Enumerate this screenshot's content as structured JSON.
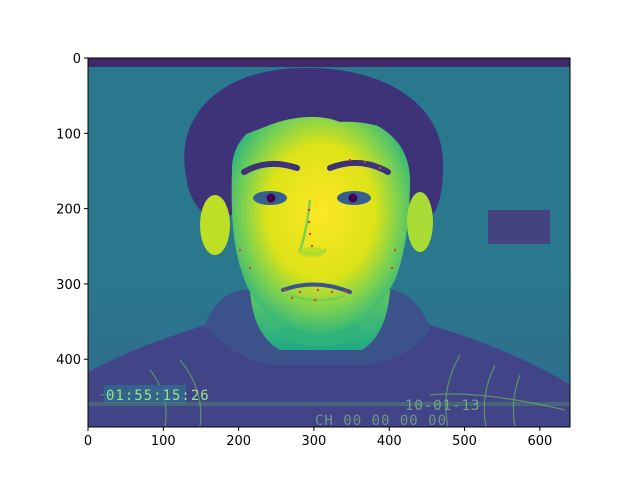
{
  "image": {
    "description_colormap": "viridis",
    "source_pixels": {
      "width": 640,
      "height": 490
    }
  },
  "axes": {
    "x_ticks": [
      0,
      100,
      200,
      300,
      400,
      500,
      600
    ],
    "y_ticks": [
      0,
      100,
      200,
      300,
      400
    ],
    "xlim": [
      0,
      640
    ],
    "ylim": [
      490,
      0
    ]
  },
  "overlay_text": {
    "timestamp": "01:55:15:26",
    "date": "10-01-13",
    "channel": "CH 00  00 00 00"
  },
  "colors": {
    "viridis_dark": "#440154",
    "viridis_deep_blue": "#3b528b",
    "viridis_teal": "#21918c",
    "viridis_green": "#5ec962",
    "viridis_yellow": "#fde725"
  }
}
